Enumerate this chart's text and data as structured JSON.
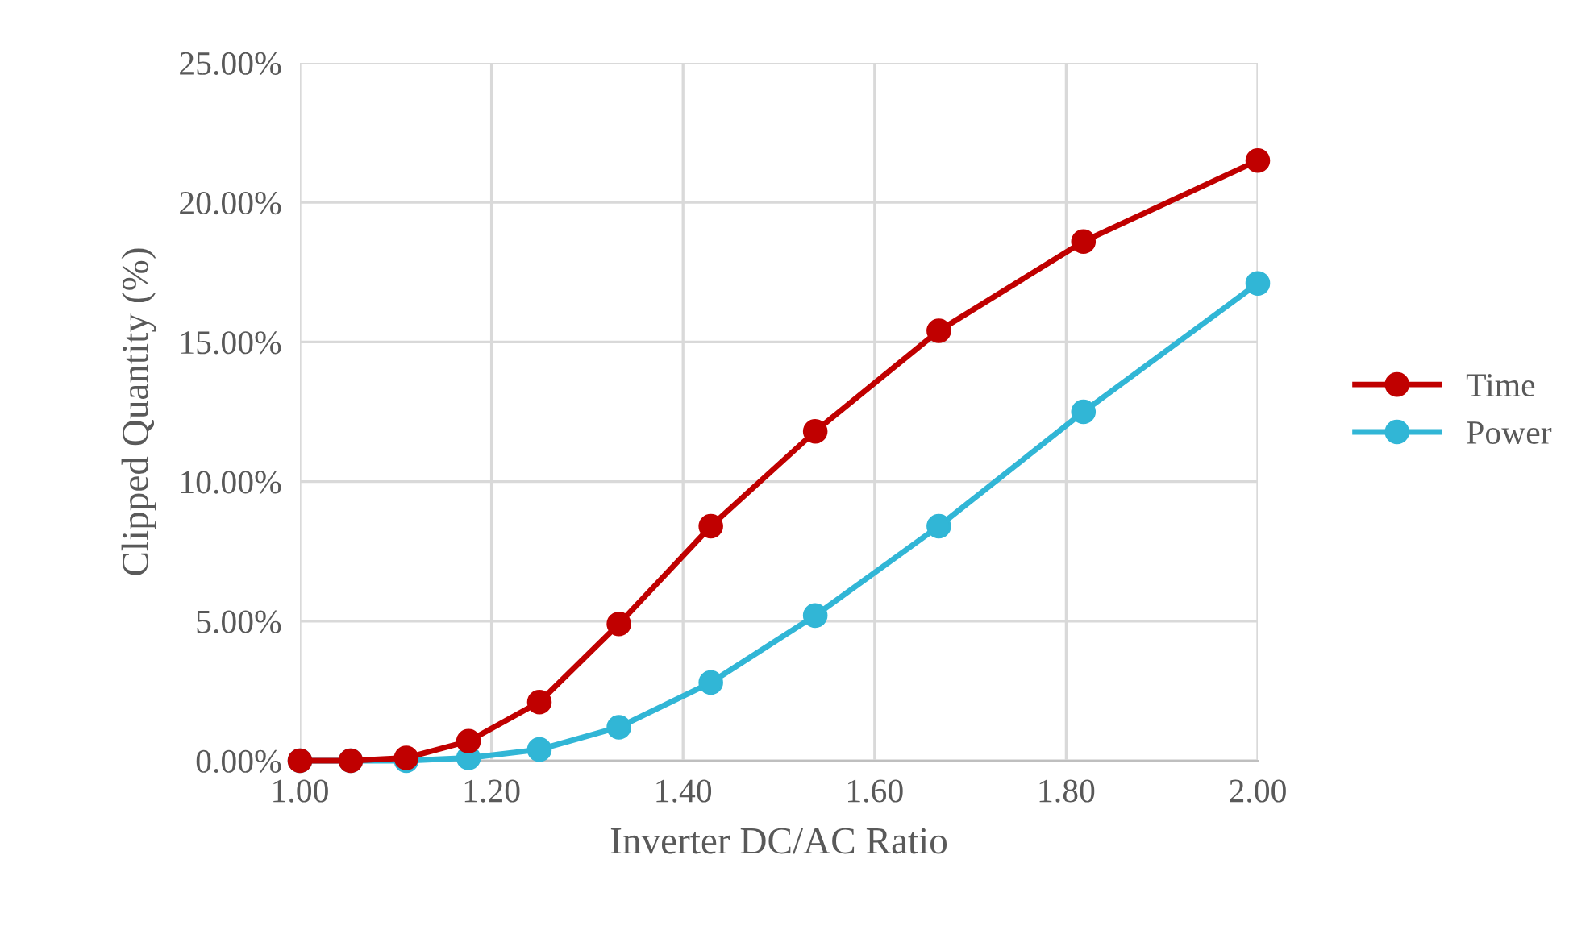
{
  "chart_data": {
    "type": "line",
    "xlabel": "Inverter DC/AC Ratio",
    "ylabel": "Clipped Quantity (%)",
    "x": [
      1.0,
      1.053,
      1.111,
      1.176,
      1.25,
      1.333,
      1.429,
      1.538,
      1.667,
      1.818,
      2.0
    ],
    "series": [
      {
        "name": "Time",
        "color": "#c00000",
        "values": [
          0.0,
          0.0,
          0.1,
          0.7,
          2.1,
          4.9,
          8.4,
          11.8,
          15.4,
          18.6,
          21.5
        ]
      },
      {
        "name": "Power",
        "color": "#31b6d6",
        "values": [
          0.0,
          0.0,
          0.0,
          0.1,
          0.4,
          1.2,
          2.8,
          5.2,
          8.4,
          12.5,
          17.1
        ]
      }
    ],
    "xlim": [
      1.0,
      2.0
    ],
    "xticks": [
      {
        "value": 1.0,
        "label": "1.00"
      },
      {
        "value": 1.2,
        "label": "1.20"
      },
      {
        "value": 1.4,
        "label": "1.40"
      },
      {
        "value": 1.6,
        "label": "1.60"
      },
      {
        "value": 1.8,
        "label": "1.80"
      },
      {
        "value": 2.0,
        "label": "2.00"
      }
    ],
    "ylim": [
      0,
      25
    ],
    "yticks": [
      {
        "value": 0,
        "label": "0.00%"
      },
      {
        "value": 5,
        "label": "5.00%"
      },
      {
        "value": 10,
        "label": "10.00%"
      },
      {
        "value": 15,
        "label": "15.00%"
      },
      {
        "value": 20,
        "label": "20.00%"
      },
      {
        "value": 25,
        "label": "25.00%"
      }
    ],
    "grid": true,
    "legend": "right",
    "marker": "circle",
    "line_style": "solid"
  }
}
